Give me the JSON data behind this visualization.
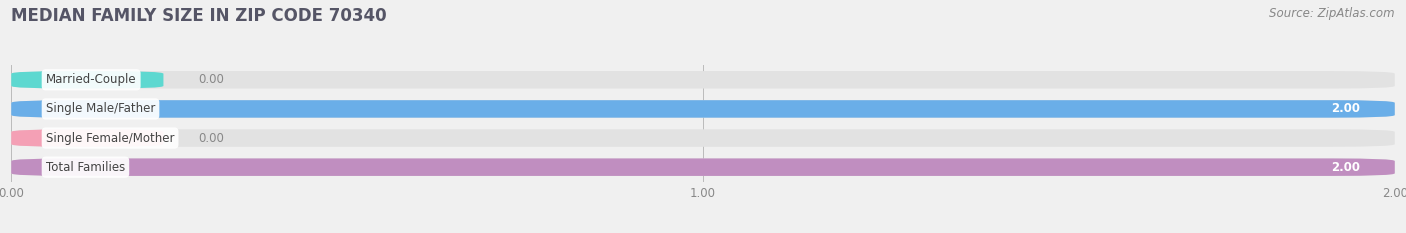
{
  "title": "MEDIAN FAMILY SIZE IN ZIP CODE 70340",
  "source": "Source: ZipAtlas.com",
  "categories": [
    "Married-Couple",
    "Single Male/Father",
    "Single Female/Mother",
    "Total Families"
  ],
  "values": [
    0.0,
    2.0,
    0.0,
    2.0
  ],
  "bar_colors": [
    "#5DD8D0",
    "#6AAEE8",
    "#F4A0B5",
    "#C08EC0"
  ],
  "background_color": "#f0f0f0",
  "bar_bg_color": "#e2e2e2",
  "xlim_max": 2.0,
  "xticks": [
    0.0,
    1.0,
    2.0
  ],
  "title_fontsize": 12,
  "label_fontsize": 8.5,
  "value_fontsize": 8.5,
  "source_fontsize": 8.5
}
